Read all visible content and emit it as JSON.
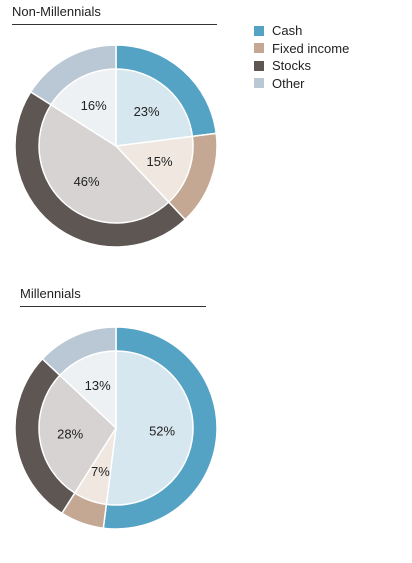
{
  "legend": [
    {
      "label": "Cash",
      "color": "#54a3c5"
    },
    {
      "label": "Fixed income",
      "color": "#c5a893"
    },
    {
      "label": "Stocks",
      "color": "#5e5652"
    },
    {
      "label": "Other",
      "color": "#b9c8d4"
    }
  ],
  "chart_data": [
    {
      "type": "pie",
      "title": "Non-Millennials",
      "categories": [
        "Cash",
        "Fixed income",
        "Stocks",
        "Other"
      ],
      "values": [
        23,
        15,
        46,
        16
      ],
      "labels": [
        "23%",
        "15%",
        "46%",
        "16%"
      ],
      "colors": [
        "#54a3c5",
        "#c5a893",
        "#5e5652",
        "#b9c8d4"
      ],
      "inner_colors": [
        "#d6e7ef",
        "#efe7e0",
        "#d6d3d2",
        "#eef1f4"
      ]
    },
    {
      "type": "pie",
      "title": "Millennials",
      "categories": [
        "Cash",
        "Fixed income",
        "Stocks",
        "Other"
      ],
      "values": [
        52,
        7,
        28,
        13
      ],
      "labels": [
        "52%",
        "7%",
        "28%",
        "13%"
      ],
      "colors": [
        "#54a3c5",
        "#c5a893",
        "#5e5652",
        "#b9c8d4"
      ],
      "inner_colors": [
        "#d6e7ef",
        "#efe7e0",
        "#d6d3d2",
        "#eef1f4"
      ]
    }
  ]
}
